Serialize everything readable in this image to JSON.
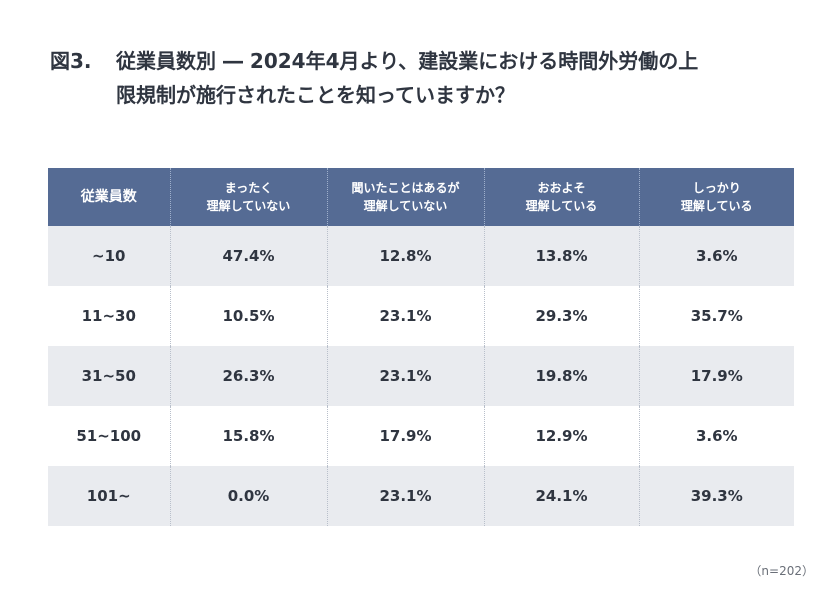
{
  "title": {
    "fig": "図3.",
    "line1": "従業員数別 ― 2024年4月より、建設業における時間外労働の上",
    "line2": "限規制が施行されたことを知っていますか？"
  },
  "table": {
    "headers": [
      {
        "l1": "従業員数",
        "l2": ""
      },
      {
        "l1": "まったく",
        "l2": "理解していない"
      },
      {
        "l1": "聞いたことはあるが",
        "l2": "理解していない"
      },
      {
        "l1": "おおよそ",
        "l2": "理解している"
      },
      {
        "l1": "しっかり",
        "l2": "理解している"
      }
    ],
    "rows": [
      [
        "~10",
        "47.4%",
        "12.8%",
        "13.8%",
        "3.6%"
      ],
      [
        "11~30",
        "10.5%",
        "23.1%",
        "29.3%",
        "35.7%"
      ],
      [
        "31~50",
        "26.3%",
        "23.1%",
        "19.8%",
        "17.9%"
      ],
      [
        "51~100",
        "15.8%",
        "17.9%",
        "12.9%",
        "3.6%"
      ],
      [
        "101~",
        "0.0%",
        "23.1%",
        "24.1%",
        "39.3%"
      ]
    ]
  },
  "note": "（n=202）",
  "colors": {
    "header_bg": "#556b94",
    "row_shade": "#e9ebef",
    "text": "#2f3540"
  }
}
